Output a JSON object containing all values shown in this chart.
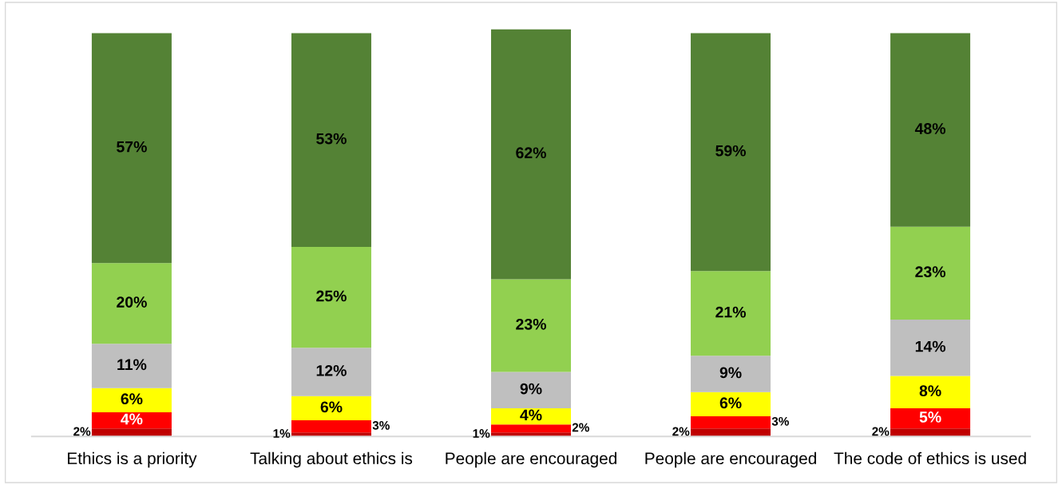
{
  "chart_data": {
    "type": "bar",
    "stacked": true,
    "data_labels": true,
    "categories": [
      "Ethics is a priority",
      "Talking about ethics is",
      "People are encouraged",
      "People are encouraged",
      "The code of ethics is used"
    ],
    "series": [
      {
        "color": "#c00000",
        "values": [
          2,
          1,
          1,
          2,
          2
        ],
        "value_labels": [
          "2%",
          "1%",
          "1%",
          "2%",
          "2%"
        ]
      },
      {
        "color": "#ff0000",
        "values": [
          4,
          3,
          2,
          3,
          5
        ],
        "value_labels": [
          "4%",
          "3%",
          "2%",
          "3%",
          "5%"
        ]
      },
      {
        "color": "#ffff00",
        "values": [
          6,
          6,
          4,
          6,
          8
        ],
        "value_labels": [
          "6%",
          "6%",
          "4%",
          "6%",
          "8%"
        ]
      },
      {
        "color": "#bfbfbf",
        "values": [
          11,
          12,
          9,
          9,
          14
        ],
        "value_labels": [
          "11%",
          "12%",
          "9%",
          "9%",
          "14%"
        ]
      },
      {
        "color": "#92d050",
        "values": [
          20,
          25,
          23,
          21,
          23
        ],
        "value_labels": [
          "20%",
          "25%",
          "23%",
          "21%",
          "23%"
        ]
      },
      {
        "color": "#548235",
        "values": [
          57,
          53,
          62,
          59,
          48
        ],
        "value_labels": [
          "57%",
          "53%",
          "62%",
          "59%",
          "48%"
        ]
      }
    ]
  }
}
